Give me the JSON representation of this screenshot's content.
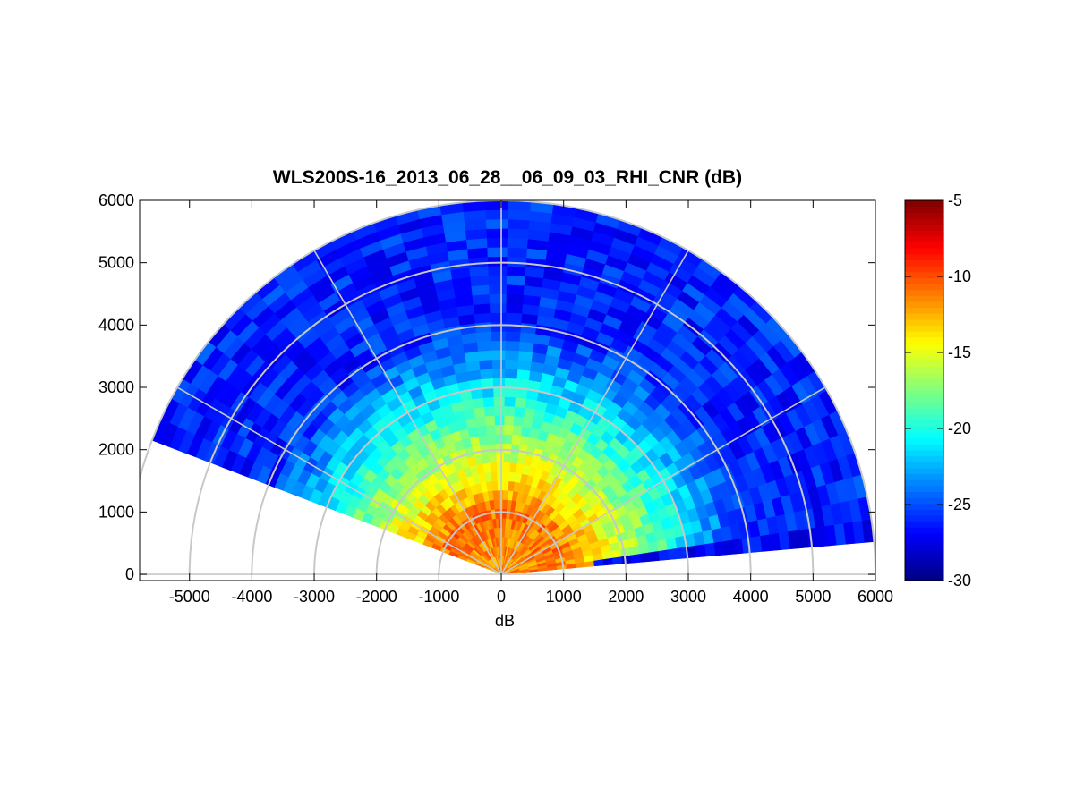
{
  "chart_data": {
    "type": "heatmap",
    "subtype": "polar-rhi-scan",
    "title": "WLS200S-16_2013_06_28__06_09_03_RHI_CNR (dB)",
    "xlabel": "dB",
    "ylabel": "",
    "x_ticks": [
      "-5000",
      "-4000",
      "-3000",
      "-2000",
      "-1000",
      "0",
      "1000",
      "2000",
      "3000",
      "4000",
      "5000",
      "6000"
    ],
    "y_ticks": [
      "0",
      "1000",
      "2000",
      "3000",
      "4000",
      "5000",
      "6000"
    ],
    "xlim": [
      -5800,
      6000
    ],
    "ylim": [
      -100,
      6000
    ],
    "grid": "polar",
    "polar_grid_ranges": [
      1000,
      2000,
      3000,
      4000,
      5000,
      6000
    ],
    "polar_grid_angles_deg": [
      0,
      30,
      60,
      90,
      120,
      150,
      180
    ],
    "scan": {
      "elevation_start_deg": 5,
      "elevation_end_deg": 159,
      "max_range": 6000,
      "range_units": "m"
    },
    "value_field": {
      "description": "CNR profile: high near the origin, decreasing with range; lowest-elevation sector has a thin low band",
      "surface_near_range_db": -12,
      "peak_db": -11,
      "peak_range": 1000,
      "mid_range_2000_db": -16,
      "mid_range_3000_db": -21,
      "far_range_db": -26,
      "low_elevation_band_db": -27
    },
    "colorbar": {
      "colormap": "jet",
      "min": -30,
      "max": -5,
      "ticks": [
        "-5",
        "-10",
        "-15",
        "-20",
        "-25",
        "-30"
      ]
    },
    "colors": {
      "axis": "#000000",
      "polar_grid": "#c8c8c8",
      "background": "#ffffff"
    }
  }
}
